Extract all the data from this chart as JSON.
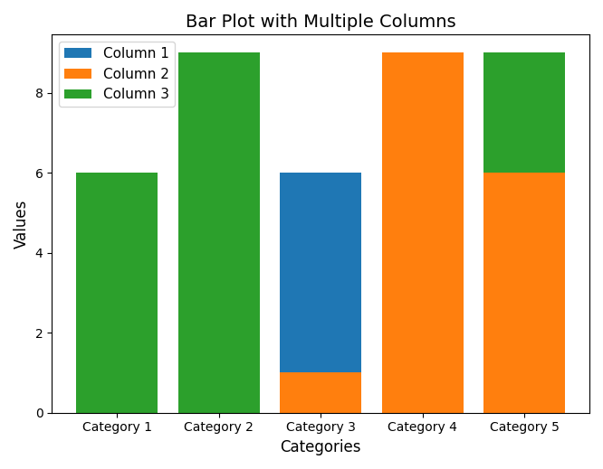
{
  "title": "Bar Plot with Multiple Columns",
  "xlabel": "Categories",
  "ylabel": "Values",
  "categories": [
    "Category 1",
    "Category 2",
    "Category 3",
    "Category 4",
    "Category 5"
  ],
  "columns": [
    "Column 1",
    "Column 2",
    "Column 3"
  ],
  "col1_values": [
    0,
    0,
    5,
    0,
    0
  ],
  "col2_values": [
    0,
    0,
    1,
    9,
    6
  ],
  "col3_values": [
    6,
    9,
    0,
    0,
    3
  ],
  "col1_color": "#1f77b4",
  "col2_color": "#ff7f0e",
  "col3_color": "#2ca02c",
  "col1_bottom": [
    0,
    0,
    1,
    0,
    0
  ],
  "col3_bottom": [
    0,
    0,
    0,
    0,
    6
  ],
  "figsize": [
    6.66,
    5.19
  ],
  "dpi": 100,
  "title_fontsize": 14,
  "legend_loc": "upper left"
}
